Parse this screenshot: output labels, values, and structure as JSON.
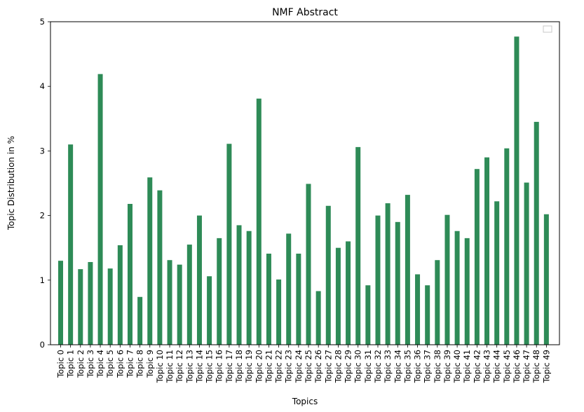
{
  "chart_data": {
    "type": "bar",
    "title": "NMF Abstract",
    "xlabel": "Topics",
    "ylabel": "Topic Distribution in %",
    "ylim": [
      0,
      5
    ],
    "yticks": [
      0,
      1,
      2,
      3,
      4,
      5
    ],
    "grid": false,
    "legend": "top-right (empty)",
    "bar_color": "#2e8b57",
    "categories": [
      "Topic 0",
      "Topic 1",
      "Topic 2",
      "Topic 3",
      "Topic 4",
      "Topic 5",
      "Topic 6",
      "Topic 7",
      "Topic 8",
      "Topic 9",
      "Topic 10",
      "Topic 11",
      "Topic 12",
      "Topic 13",
      "Topic 14",
      "Topic 15",
      "Topic 16",
      "Topic 17",
      "Topic 18",
      "Topic 19",
      "Topic 20",
      "Topic 21",
      "Topic 22",
      "Topic 23",
      "Topic 24",
      "Topic 25",
      "Topic 26",
      "Topic 27",
      "Topic 28",
      "Topic 29",
      "Topic 30",
      "Topic 31",
      "Topic 32",
      "Topic 33",
      "Topic 34",
      "Topic 35",
      "Topic 36",
      "Topic 37",
      "Topic 38",
      "Topic 39",
      "Topic 40",
      "Topic 41",
      "Topic 42",
      "Topic 43",
      "Topic 44",
      "Topic 45",
      "Topic 46",
      "Topic 47",
      "Topic 48",
      "Topic 49"
    ],
    "values": [
      1.3,
      3.1,
      1.17,
      1.28,
      4.19,
      1.18,
      1.54,
      2.18,
      0.74,
      2.59,
      2.39,
      1.31,
      1.24,
      1.55,
      2.0,
      1.06,
      1.65,
      3.11,
      1.85,
      1.76,
      3.81,
      1.41,
      1.01,
      1.72,
      1.41,
      2.49,
      0.83,
      2.15,
      1.5,
      1.6,
      3.06,
      0.92,
      2.0,
      2.19,
      1.9,
      2.32,
      1.09,
      0.92,
      1.31,
      2.01,
      1.76,
      1.65,
      2.72,
      2.9,
      2.22,
      3.04,
      4.77,
      2.51,
      3.45,
      2.02
    ]
  }
}
